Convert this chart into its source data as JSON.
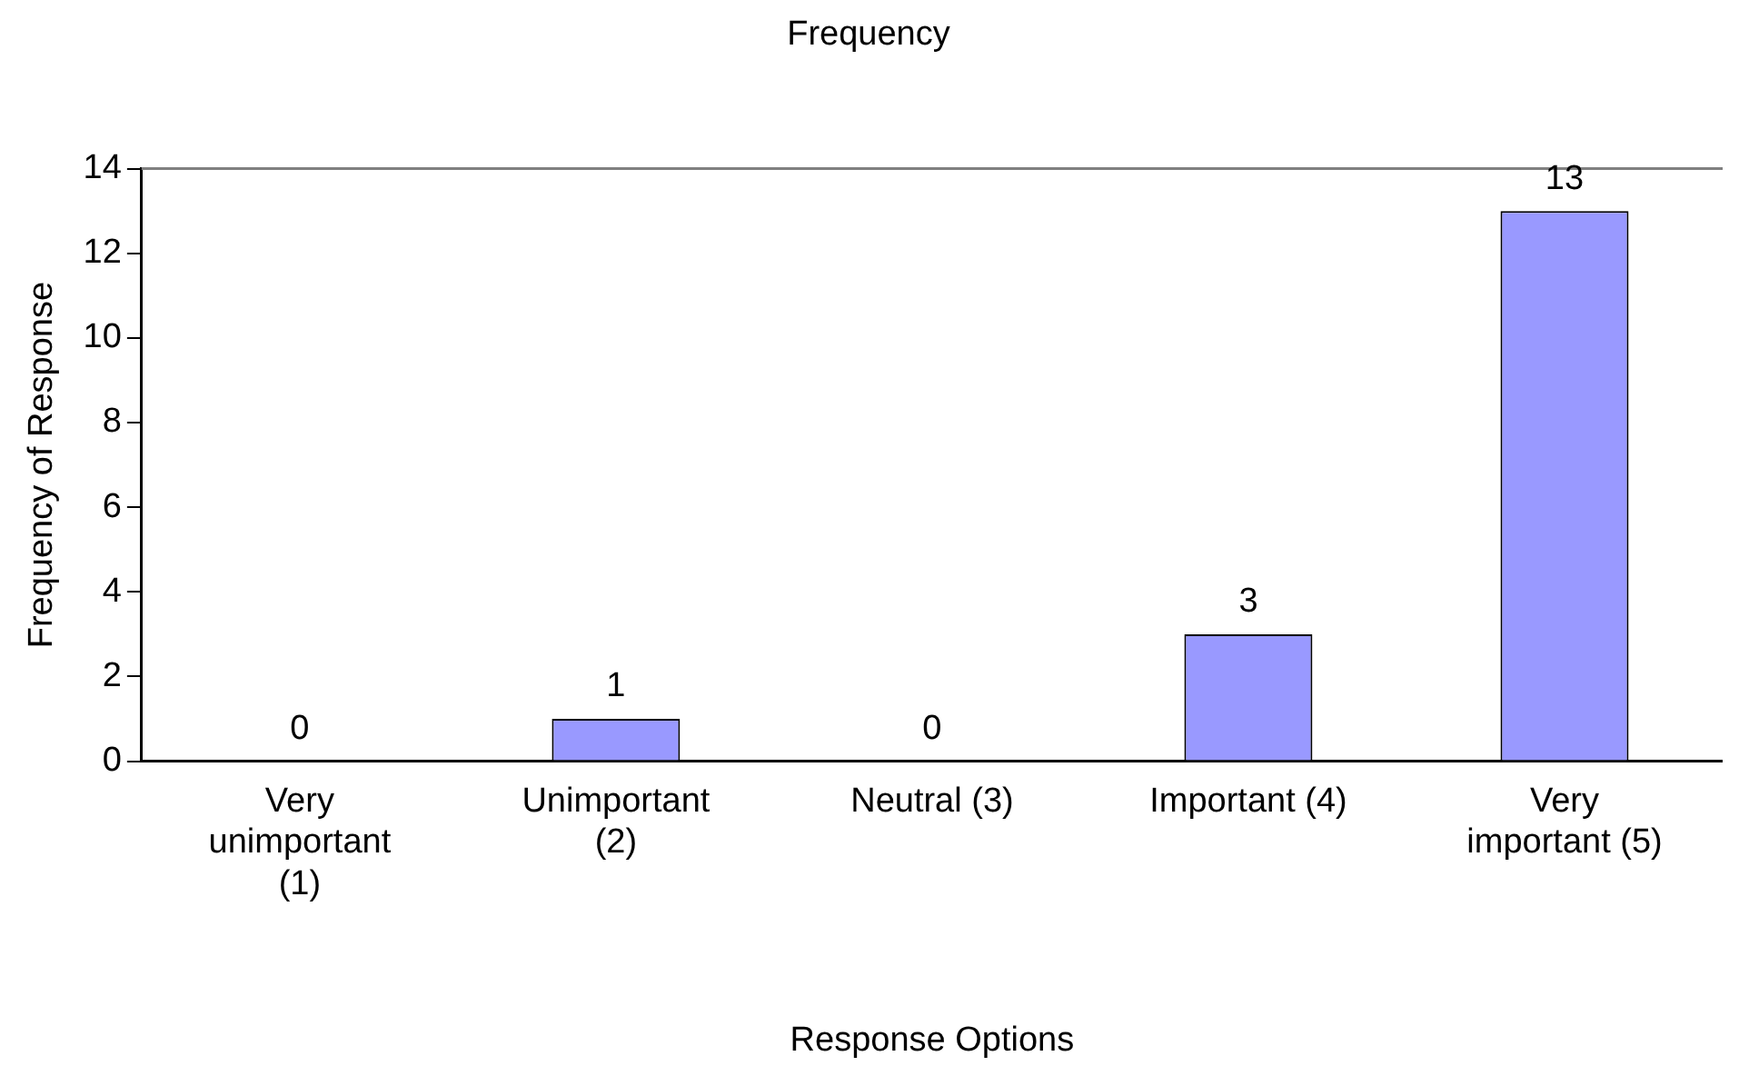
{
  "chart_data": {
    "type": "bar",
    "title": "Frequency",
    "xlabel": "Response Options",
    "ylabel": "Frequency of Response",
    "categories": [
      "Very unimportant (1)",
      "Unimportant (2)",
      "Neutral (3)",
      "Important (4)",
      "Very important (5)"
    ],
    "values": [
      0,
      1,
      0,
      3,
      13
    ],
    "color": "#9999ff",
    "ylim": [
      0,
      14
    ],
    "yticks": [
      0,
      2,
      4,
      6,
      8,
      10,
      12,
      14
    ],
    "grid": false,
    "legend": false,
    "data_labels": true
  }
}
